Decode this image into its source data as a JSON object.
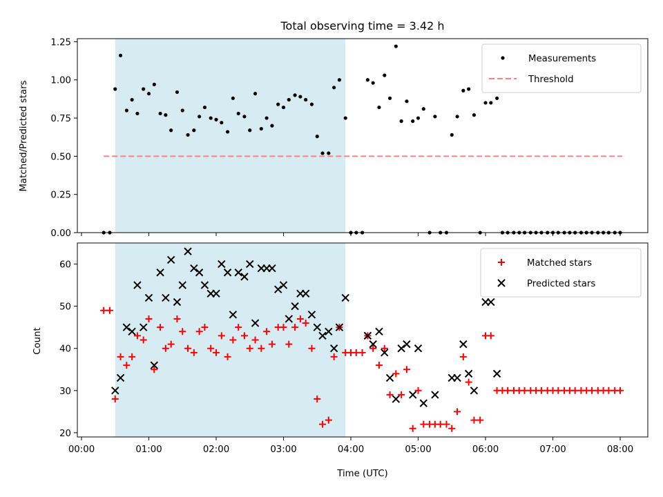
{
  "chart_data": [
    {
      "type": "scatter",
      "title": "Total observing time = 3.42 h",
      "xlabel": "",
      "ylabel": "Matched/Predicted stars",
      "ylim": [
        0,
        1.27
      ],
      "y_ticks": [
        "0.00",
        "0.25",
        "0.50",
        "0.75",
        "1.00",
        "1.25"
      ],
      "y_tick_values": [
        0,
        0.25,
        0.5,
        0.75,
        1.0,
        1.25
      ],
      "x_ticks_hours": [
        0,
        1,
        2,
        3,
        4,
        5,
        6,
        7,
        8
      ],
      "shaded_region_hours": [
        0.5,
        3.92
      ],
      "shaded_color": "#add8e6",
      "threshold": {
        "name": "Threshold",
        "value": 0.5,
        "x_range_hours": [
          0.33,
          8.03
        ],
        "color": "#ff7f7f"
      },
      "legend": {
        "placement": "top-right",
        "entries": [
          "Measurements",
          "Threshold"
        ]
      },
      "series": [
        {
          "name": "Measurements",
          "color": "#000000",
          "marker": "dot",
          "x_hours": [
            0.33,
            0.42,
            0.5,
            0.58,
            0.67,
            0.75,
            0.83,
            0.92,
            1.0,
            1.08,
            1.17,
            1.25,
            1.33,
            1.42,
            1.5,
            1.58,
            1.67,
            1.75,
            1.83,
            1.92,
            2.0,
            2.08,
            2.17,
            2.25,
            2.33,
            2.42,
            2.5,
            2.58,
            2.67,
            2.75,
            2.83,
            2.92,
            3.0,
            3.08,
            3.17,
            3.25,
            3.33,
            3.42,
            3.5,
            3.58,
            3.67,
            3.75,
            3.83,
            3.92,
            4.0,
            4.08,
            4.17,
            4.25,
            4.33,
            4.42,
            4.5,
            4.58,
            4.67,
            4.75,
            4.83,
            4.92,
            5.0,
            5.08,
            5.17,
            5.25,
            5.33,
            5.42,
            5.5,
            5.58,
            5.67,
            5.75,
            5.83,
            5.92,
            6.0,
            6.08,
            6.17,
            6.25,
            6.33,
            6.42,
            6.5,
            6.58,
            6.67,
            6.75,
            6.83,
            6.92,
            7.0,
            7.08,
            7.17,
            7.25,
            7.33,
            7.42,
            7.5,
            7.58,
            7.67,
            7.75,
            7.83,
            7.92,
            8.0
          ],
          "y": [
            0.0,
            0.0,
            0.94,
            1.16,
            0.8,
            0.87,
            0.78,
            0.94,
            0.91,
            0.97,
            0.78,
            0.77,
            0.67,
            0.92,
            0.8,
            0.64,
            0.67,
            0.76,
            0.82,
            0.75,
            0.74,
            0.72,
            0.66,
            0.88,
            0.78,
            0.76,
            0.67,
            0.91,
            0.68,
            0.75,
            0.7,
            0.84,
            0.82,
            0.87,
            0.9,
            0.89,
            0.87,
            0.84,
            0.63,
            0.52,
            0.52,
            0.95,
            1.0,
            0.75,
            0.0,
            0.0,
            0.0,
            1.0,
            0.98,
            0.82,
            1.03,
            0.88,
            1.22,
            0.73,
            0.86,
            0.73,
            0.75,
            0.81,
            0.0,
            0.76,
            0.0,
            0.0,
            0.64,
            0.76,
            0.93,
            0.94,
            0.77,
            0.0,
            0.85,
            0.85,
            0.88,
            0.0,
            0.0,
            0.0,
            0.0,
            0.0,
            0.0,
            0.0,
            0.0,
            0.0,
            0.0,
            0.0,
            0.0,
            0.0,
            0.0,
            0.0,
            0.0,
            0.0,
            0.0,
            0.0,
            0.0,
            0.0,
            0.0
          ]
        }
      ]
    },
    {
      "type": "scatter",
      "title": "",
      "xlabel": "Time (UTC)",
      "ylabel": "Count",
      "ylim": [
        19,
        65
      ],
      "y_ticks": [
        "20",
        "30",
        "40",
        "50",
        "60"
      ],
      "y_tick_values": [
        20,
        30,
        40,
        50,
        60
      ],
      "x_ticks": [
        "00:00",
        "01:00",
        "02:00",
        "03:00",
        "04:00",
        "05:00",
        "06:00",
        "07:00",
        "08:00"
      ],
      "x_ticks_hours": [
        0,
        1,
        2,
        3,
        4,
        5,
        6,
        7,
        8
      ],
      "shaded_region_hours": [
        0.5,
        3.92
      ],
      "shaded_color": "#add8e6",
      "legend": {
        "placement": "top-right",
        "entries": [
          "Matched stars",
          "Predicted stars"
        ]
      },
      "series": [
        {
          "name": "Matched stars",
          "color": "#ff0000",
          "marker": "plus",
          "x_hours": [
            0.33,
            0.42,
            0.5,
            0.58,
            0.67,
            0.75,
            0.83,
            0.92,
            1.0,
            1.08,
            1.17,
            1.25,
            1.33,
            1.42,
            1.5,
            1.58,
            1.67,
            1.75,
            1.83,
            1.92,
            2.0,
            2.08,
            2.17,
            2.25,
            2.33,
            2.42,
            2.5,
            2.58,
            2.67,
            2.75,
            2.83,
            2.92,
            3.0,
            3.08,
            3.17,
            3.25,
            3.33,
            3.42,
            3.5,
            3.58,
            3.67,
            3.75,
            3.83,
            3.92,
            4.0,
            4.08,
            4.17,
            4.25,
            4.33,
            4.42,
            4.5,
            4.58,
            4.67,
            4.75,
            4.83,
            4.92,
            5.0,
            5.08,
            5.17,
            5.25,
            5.33,
            5.42,
            5.5,
            5.58,
            5.67,
            5.75,
            5.83,
            5.92,
            6.0,
            6.08,
            6.17,
            6.25,
            6.33,
            6.42,
            6.5,
            6.58,
            6.67,
            6.75,
            6.83,
            6.92,
            7.0,
            7.08,
            7.17,
            7.25,
            7.33,
            7.42,
            7.5,
            7.58,
            7.67,
            7.75,
            7.83,
            7.92,
            8.0
          ],
          "y": [
            49,
            49,
            28,
            38,
            36,
            38,
            43,
            42,
            47,
            35,
            45,
            40,
            41,
            47,
            44,
            40,
            39,
            44,
            45,
            40,
            39,
            43,
            38,
            42,
            45,
            43,
            40,
            42,
            40,
            44,
            41,
            45,
            45,
            41,
            45,
            47,
            46,
            40,
            28,
            22,
            23,
            38,
            45,
            39,
            39,
            39,
            39,
            43,
            40,
            36,
            40,
            29,
            34,
            29,
            35,
            21,
            30,
            22,
            22,
            22,
            22,
            22,
            21,
            25,
            38,
            32,
            23,
            23,
            43,
            43,
            30,
            30,
            30,
            30,
            30,
            30,
            30,
            30,
            30,
            30,
            30,
            30,
            30,
            30,
            30,
            30,
            30,
            30,
            30,
            30,
            30,
            30,
            30
          ]
        },
        {
          "name": "Predicted stars",
          "color": "#000000",
          "marker": "x",
          "x_hours": [
            0.5,
            0.58,
            0.67,
            0.75,
            0.83,
            0.92,
            1.0,
            1.08,
            1.17,
            1.25,
            1.33,
            1.42,
            1.5,
            1.58,
            1.67,
            1.75,
            1.83,
            1.92,
            2.0,
            2.08,
            2.17,
            2.25,
            2.33,
            2.42,
            2.5,
            2.58,
            2.67,
            2.75,
            2.83,
            2.92,
            3.0,
            3.08,
            3.17,
            3.25,
            3.33,
            3.42,
            3.5,
            3.58,
            3.67,
            3.75,
            3.83,
            3.92,
            4.25,
            4.33,
            4.42,
            4.5,
            4.58,
            4.67,
            4.75,
            4.83,
            4.92,
            5.0,
            5.08,
            5.25,
            5.5,
            5.58,
            5.67,
            5.75,
            5.83,
            6.0,
            6.08,
            6.17
          ],
          "y": [
            30,
            33,
            45,
            44,
            55,
            45,
            52,
            36,
            58,
            52,
            61,
            51,
            55,
            63,
            59,
            58,
            55,
            53,
            53,
            60,
            58,
            48,
            58,
            57,
            60,
            46,
            59,
            59,
            59,
            54,
            55,
            47,
            50,
            53,
            53,
            48,
            45,
            43,
            44,
            40,
            45,
            52,
            43,
            41,
            44,
            39,
            33,
            28,
            40,
            41,
            29,
            40,
            27,
            29,
            33,
            33,
            41,
            34,
            30,
            51,
            51,
            34
          ]
        }
      ]
    }
  ]
}
